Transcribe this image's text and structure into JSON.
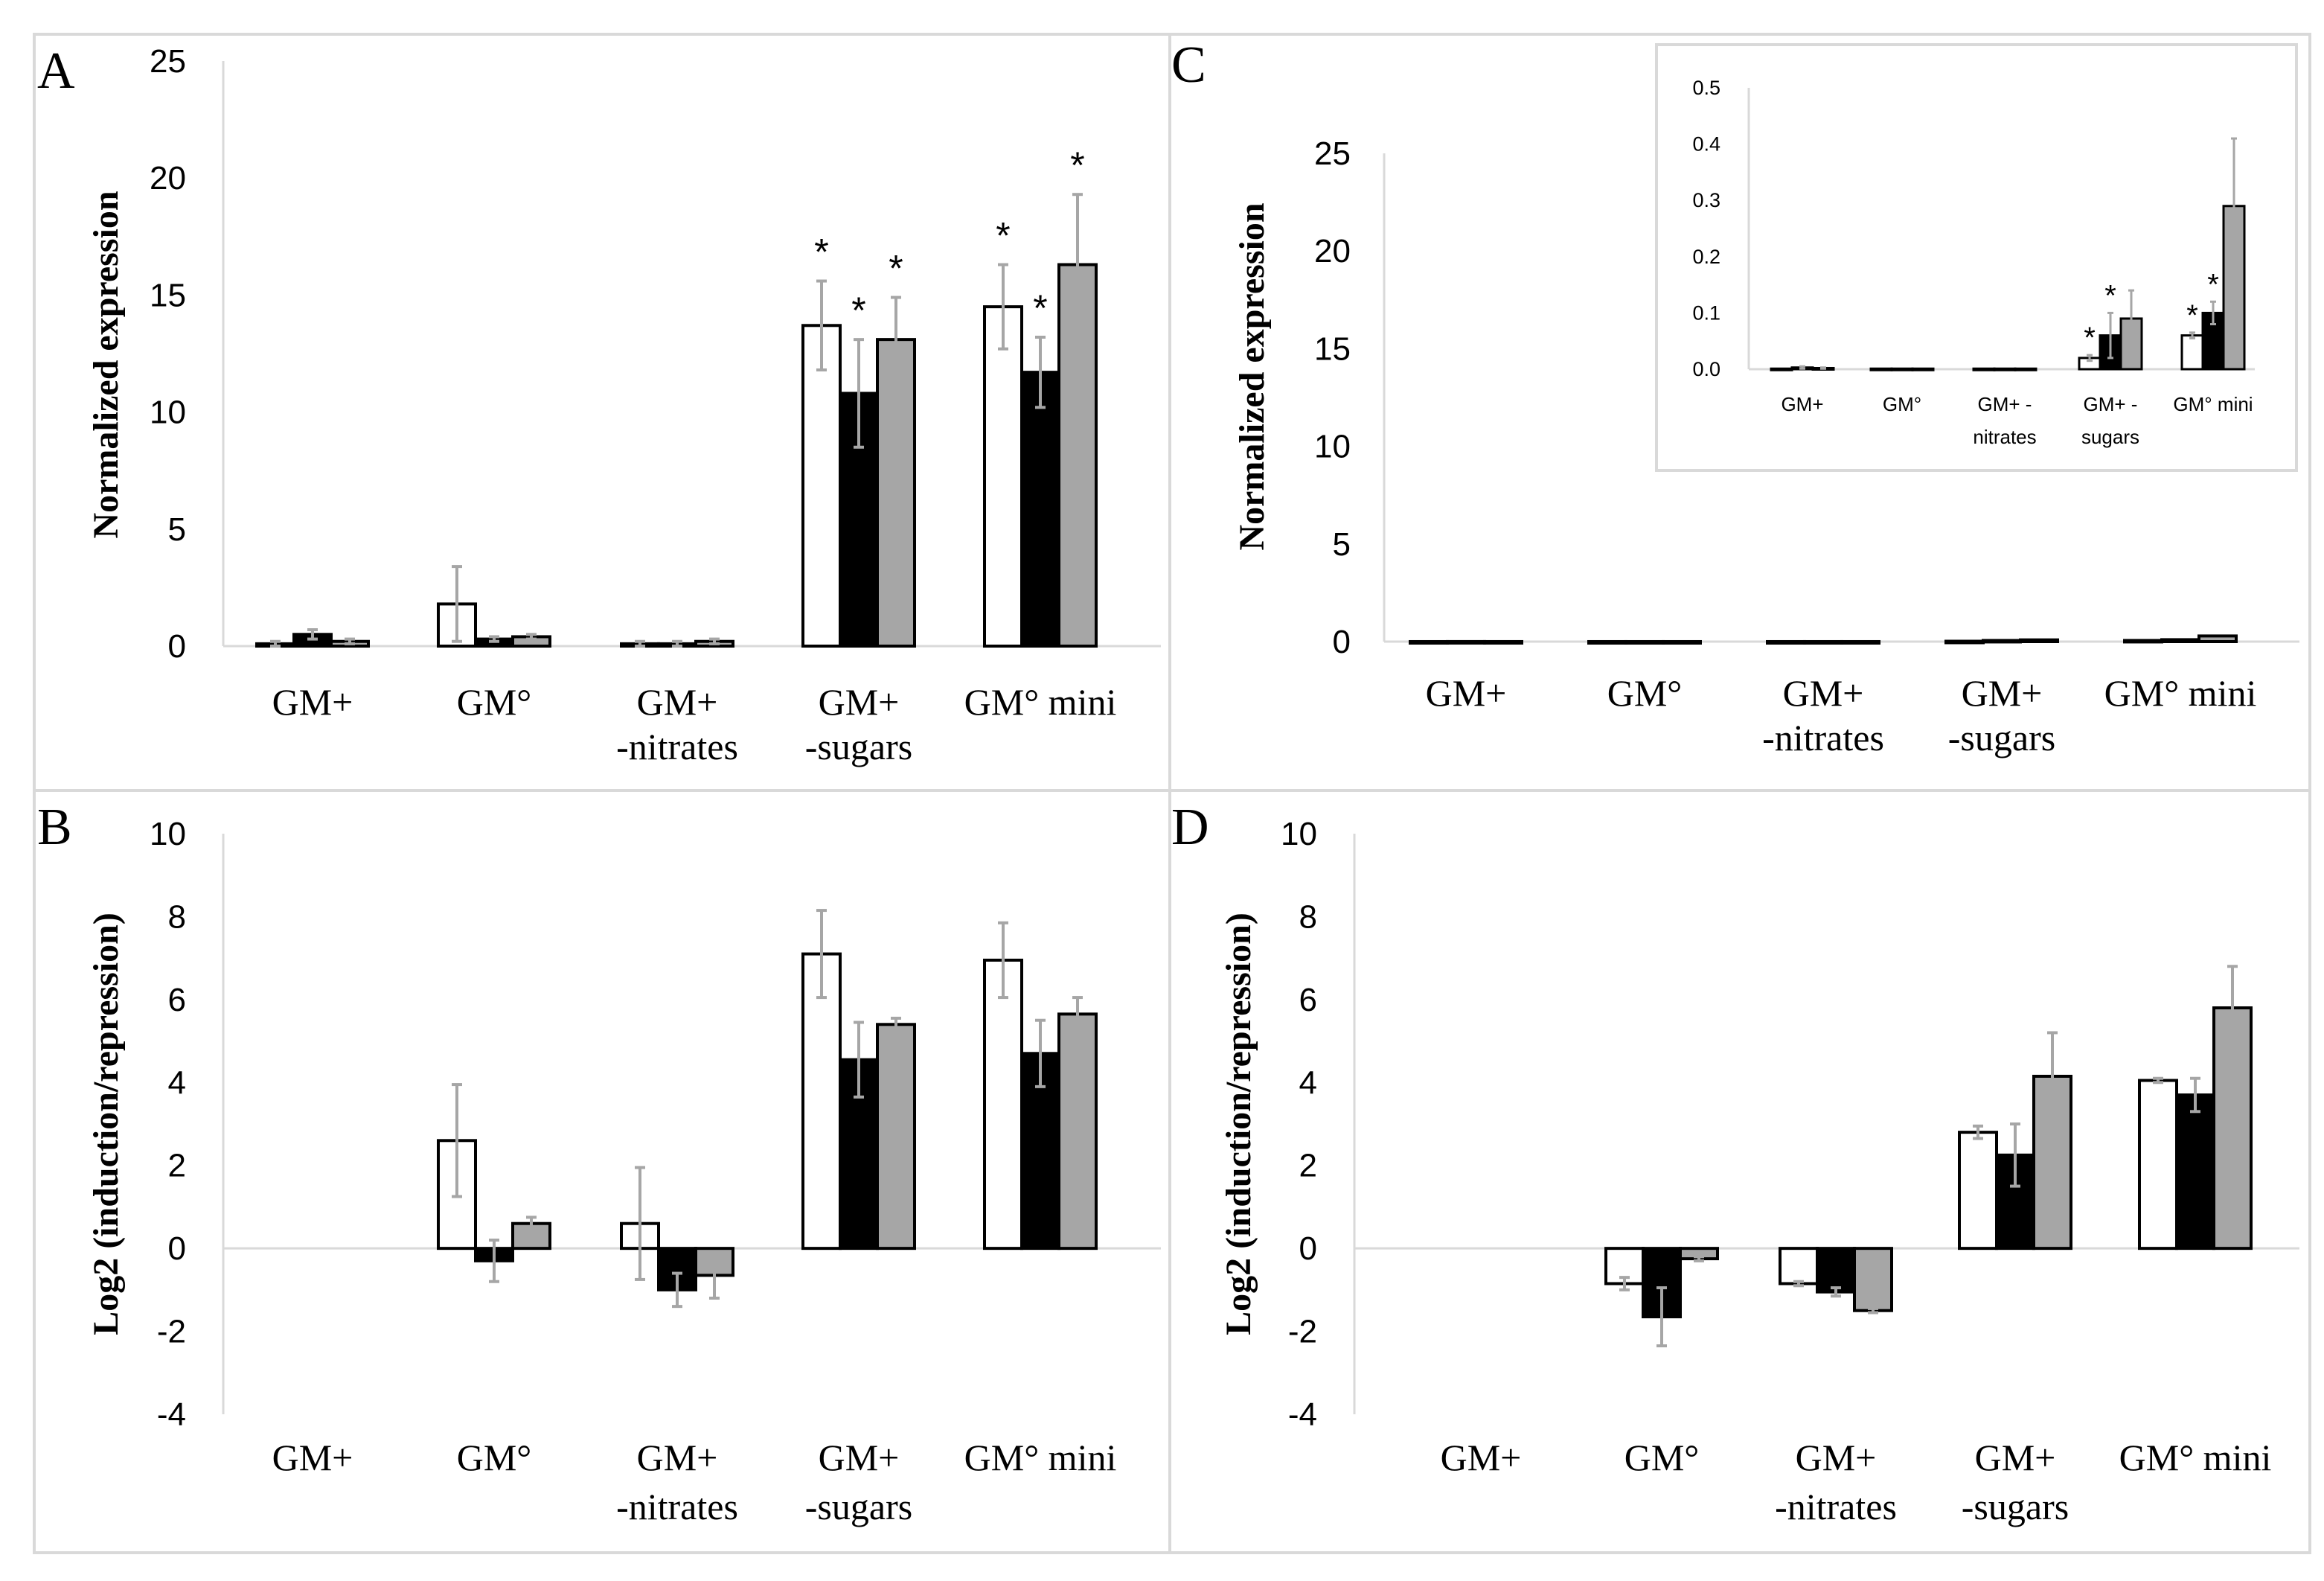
{
  "colors": {
    "series_fills": [
      "#ffffff",
      "#000000",
      "#a6a6a6"
    ],
    "bar_stroke": "#000000",
    "error_bar": "#a6a6a6",
    "axis": "#d9d9d9",
    "panel_border": "#d9d9d9"
  },
  "chart_data": [
    {
      "panel": "A",
      "type": "bar",
      "ylabel": "Normalized expression",
      "ylim": [
        0,
        25
      ],
      "yticks": [
        0,
        5,
        10,
        15,
        20,
        25
      ],
      "categories": [
        [
          "GM+"
        ],
        [
          "GM°"
        ],
        [
          "GM+",
          "-nitrates"
        ],
        [
          "GM+",
          "-sugars"
        ],
        [
          "GM° mini"
        ]
      ],
      "series": [
        {
          "values": [
            0.1,
            1.8,
            0.1,
            13.7,
            14.5
          ],
          "errors": [
            0.1,
            1.6,
            0.1,
            1.9,
            1.8
          ],
          "stars": [
            false,
            false,
            false,
            true,
            true
          ]
        },
        {
          "values": [
            0.5,
            0.3,
            0.1,
            10.8,
            11.7
          ],
          "errors": [
            0.2,
            0.1,
            0.1,
            2.3,
            1.5
          ],
          "stars": [
            false,
            false,
            false,
            true,
            true
          ]
        },
        {
          "values": [
            0.2,
            0.4,
            0.2,
            13.1,
            16.3
          ],
          "errors": [
            0.1,
            0.1,
            0.1,
            1.8,
            3.0
          ],
          "stars": [
            false,
            false,
            false,
            true,
            true
          ]
        }
      ]
    },
    {
      "panel": "B",
      "type": "bar",
      "ylabel": "Log2 (induction/repression)",
      "ylim": [
        -4,
        10
      ],
      "yticks": [
        -4,
        -2,
        0,
        2,
        4,
        6,
        8,
        10
      ],
      "categories": [
        [
          "GM+"
        ],
        [
          "GM°"
        ],
        [
          "GM+",
          "-nitrates"
        ],
        [
          "GM+",
          "-sugars"
        ],
        [
          "GM° mini"
        ]
      ],
      "series": [
        {
          "values": [
            0,
            2.6,
            0.6,
            7.1,
            6.95
          ],
          "errors": [
            0,
            1.35,
            1.35,
            1.05,
            0.9
          ]
        },
        {
          "values": [
            0,
            -0.3,
            -1.0,
            4.55,
            4.7
          ],
          "errors": [
            0,
            0.5,
            0.4,
            0.9,
            0.8
          ]
        },
        {
          "values": [
            0,
            0.6,
            -0.65,
            5.4,
            5.65
          ],
          "errors": [
            0,
            0.15,
            0.55,
            0.15,
            0.4
          ]
        }
      ]
    },
    {
      "panel": "C",
      "type": "bar",
      "ylabel": "Normalized expression",
      "ylim": [
        0,
        25
      ],
      "yticks": [
        0,
        5,
        10,
        15,
        20,
        25
      ],
      "categories": [
        [
          "GM+"
        ],
        [
          "GM°"
        ],
        [
          "GM+",
          "-nitrates"
        ],
        [
          "GM+",
          "-sugars"
        ],
        [
          "GM° mini"
        ]
      ],
      "series": [
        {
          "values": [
            0.001,
            0.001,
            0.001,
            0.02,
            0.06
          ],
          "errors": [
            0,
            0,
            0,
            0,
            0
          ]
        },
        {
          "values": [
            0.003,
            0.001,
            0.001,
            0.06,
            0.1
          ],
          "errors": [
            0,
            0,
            0,
            0,
            0
          ]
        },
        {
          "values": [
            0.002,
            0.001,
            0.001,
            0.09,
            0.29
          ],
          "errors": [
            0,
            0,
            0,
            0,
            0
          ]
        }
      ],
      "inset": {
        "ylim": [
          0,
          0.5
        ],
        "yticks": [
          "0.0",
          "0.1",
          "0.2",
          "0.3",
          "0.4",
          "0.5"
        ],
        "categories": [
          [
            "GM+"
          ],
          [
            "GM°"
          ],
          [
            "GM+ -",
            "nitrates"
          ],
          [
            "GM+ -",
            "sugars"
          ],
          [
            "GM° mini"
          ]
        ],
        "series": [
          {
            "values": [
              0.001,
              0.001,
              0.001,
              0.02,
              0.06
            ],
            "errors": [
              0,
              0,
              0,
              0.005,
              0.005
            ],
            "stars": [
              false,
              false,
              false,
              true,
              true
            ]
          },
          {
            "values": [
              0.003,
              0.001,
              0.001,
              0.06,
              0.1
            ],
            "errors": [
              0.002,
              0,
              0,
              0.04,
              0.02
            ],
            "stars": [
              false,
              false,
              false,
              true,
              true
            ]
          },
          {
            "values": [
              0.002,
              0.001,
              0.001,
              0.09,
              0.29
            ],
            "errors": [
              0.001,
              0,
              0,
              0.05,
              0.12
            ],
            "stars": [
              false,
              false,
              false,
              false,
              false
            ]
          }
        ]
      }
    },
    {
      "panel": "D",
      "type": "bar",
      "ylabel": "Log2 (induction/repression)",
      "ylim": [
        -4,
        10
      ],
      "yticks": [
        -4,
        -2,
        0,
        2,
        4,
        6,
        8,
        10
      ],
      "categories": [
        [
          "GM+"
        ],
        [
          "GM°"
        ],
        [
          "GM+",
          "-nitrates"
        ],
        [
          "GM+",
          "-sugars"
        ],
        [
          "GM° mini"
        ]
      ],
      "series": [
        {
          "values": [
            0,
            -0.85,
            -0.85,
            2.8,
            4.05
          ],
          "errors": [
            0,
            0.15,
            0.05,
            0.15,
            0.05
          ]
        },
        {
          "values": [
            0,
            -1.65,
            -1.05,
            2.25,
            3.7
          ],
          "errors": [
            0,
            0.7,
            0.1,
            0.75,
            0.4
          ]
        },
        {
          "values": [
            0,
            -0.25,
            -1.5,
            4.15,
            5.8
          ],
          "errors": [
            0,
            0.05,
            0.05,
            1.05,
            1.0
          ]
        }
      ]
    }
  ]
}
